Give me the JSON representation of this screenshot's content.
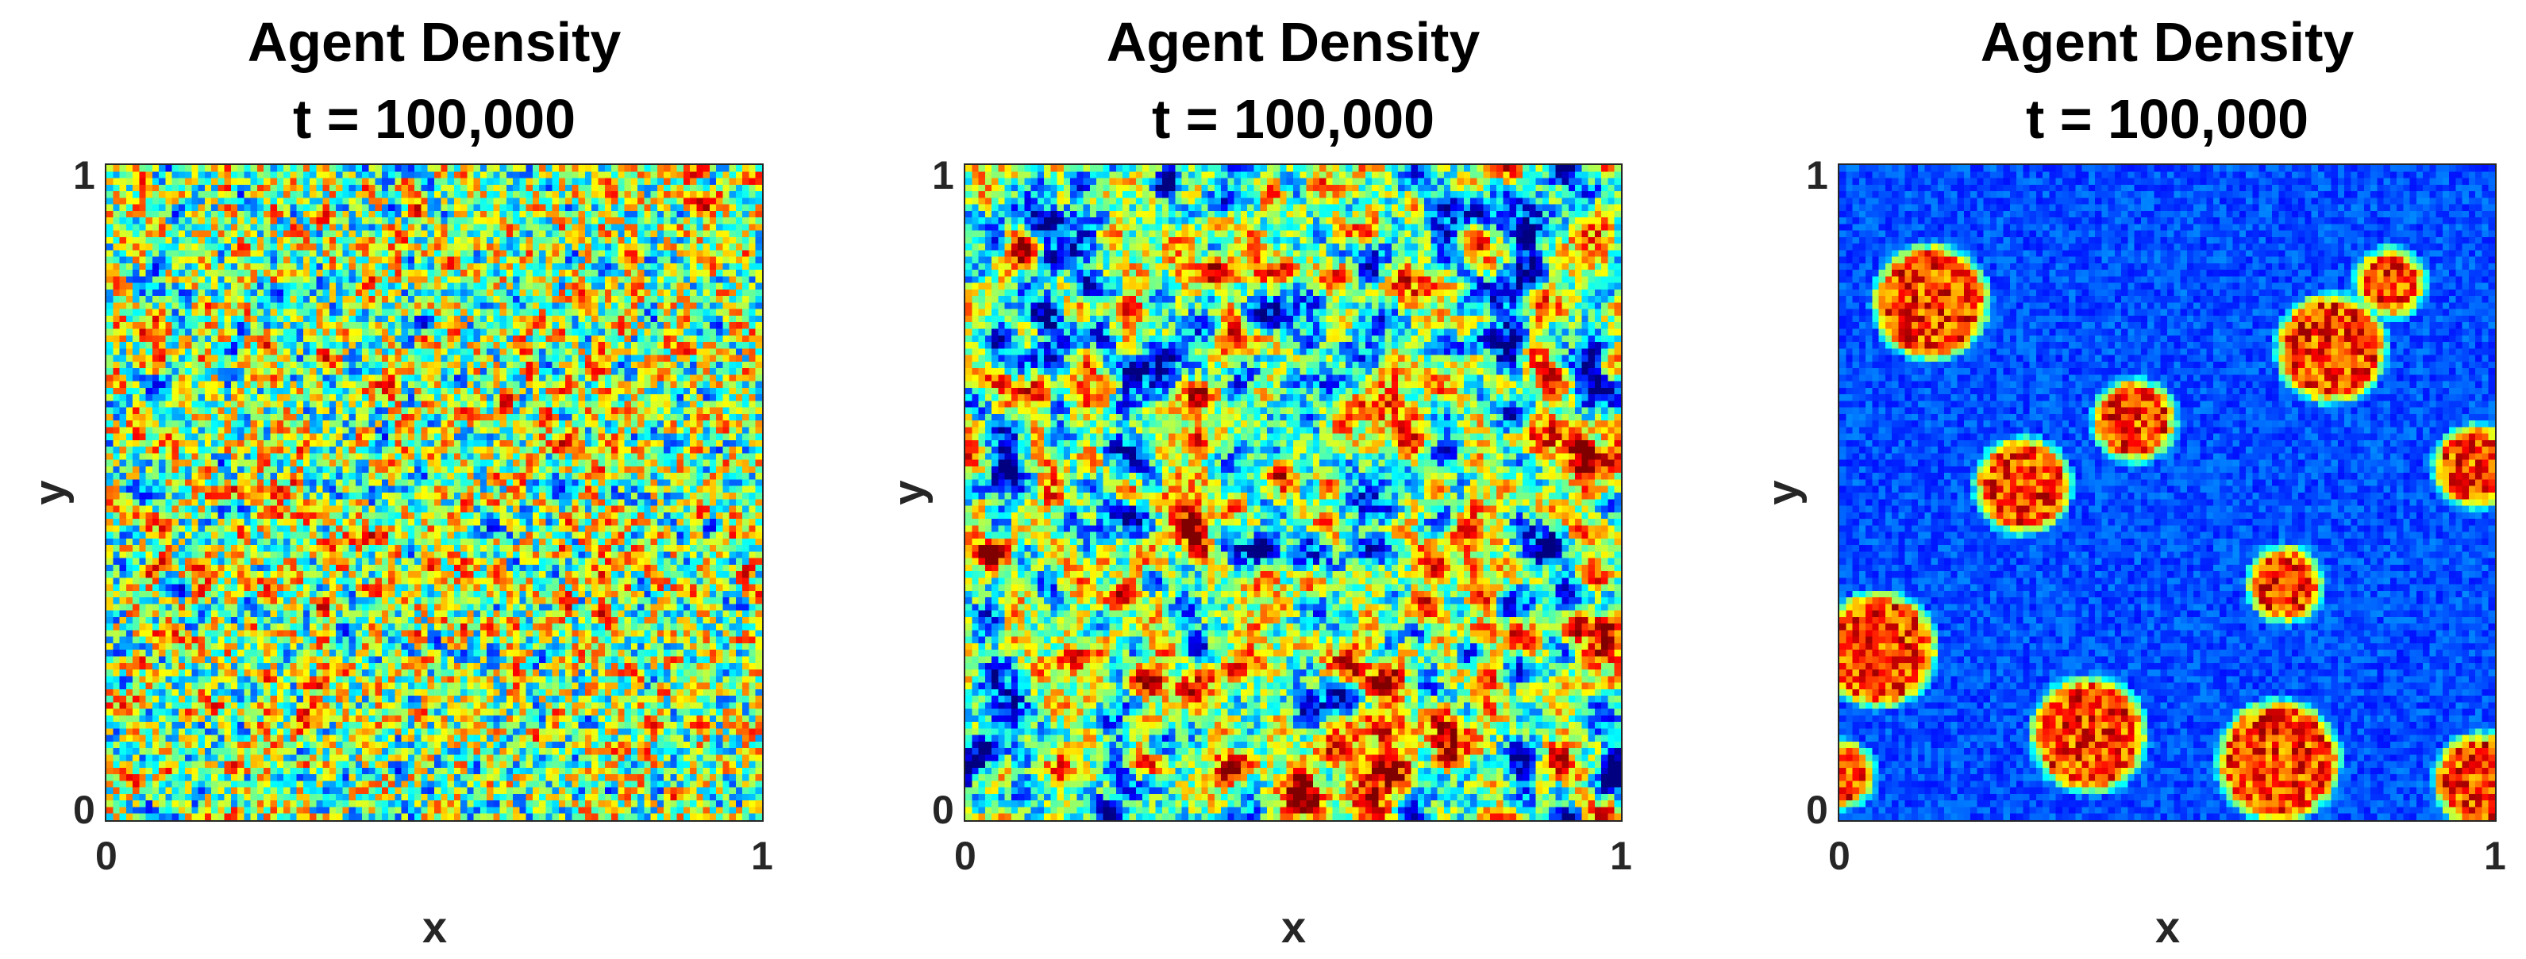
{
  "chart_data": [
    {
      "type": "heatmap",
      "title": "Agent Density",
      "subtitle": "t = 100,000",
      "xlabel": "x",
      "ylabel": "y",
      "xlim": [
        0,
        1
      ],
      "ylim": [
        0,
        1
      ],
      "xticks": [
        "0",
        "1"
      ],
      "yticks": [
        "0",
        "1"
      ],
      "colormap": "jet",
      "pattern": "uniform fine-grained noise around mid density"
    },
    {
      "type": "heatmap",
      "title": "Agent Density",
      "subtitle": "t = 100,000",
      "xlabel": "x",
      "ylabel": "y",
      "xlim": [
        0,
        1
      ],
      "ylim": [
        0,
        1
      ],
      "xticks": [
        "0",
        "1"
      ],
      "yticks": [
        "0",
        "1"
      ],
      "colormap": "jet",
      "pattern": "coarsening patches with scattered high-density spots"
    },
    {
      "type": "heatmap",
      "title": "Agent Density",
      "subtitle": "t = 100,000",
      "xlabel": "x",
      "ylabel": "y",
      "xlim": [
        0,
        1
      ],
      "ylim": [
        0,
        1
      ],
      "xticks": [
        "0",
        "1"
      ],
      "yticks": [
        "0",
        "1"
      ],
      "colormap": "jet",
      "pattern": "high-density clusters on low-density background",
      "clusters": [
        {
          "x": 0.14,
          "y": 0.79,
          "r": 0.085
        },
        {
          "x": 0.75,
          "y": 0.72,
          "r": 0.08
        },
        {
          "x": 0.84,
          "y": 0.82,
          "r": 0.05
        },
        {
          "x": 0.45,
          "y": 0.61,
          "r": 0.06
        },
        {
          "x": 0.28,
          "y": 0.51,
          "r": 0.07
        },
        {
          "x": 0.97,
          "y": 0.54,
          "r": 0.06
        },
        {
          "x": 0.68,
          "y": 0.36,
          "r": 0.055
        },
        {
          "x": 0.06,
          "y": 0.26,
          "r": 0.085
        },
        {
          "x": 0.38,
          "y": 0.13,
          "r": 0.085
        },
        {
          "x": 0.67,
          "y": 0.09,
          "r": 0.09
        },
        {
          "x": 0.98,
          "y": 0.06,
          "r": 0.07
        },
        {
          "x": 0.0,
          "y": 0.07,
          "r": 0.05
        }
      ]
    }
  ]
}
